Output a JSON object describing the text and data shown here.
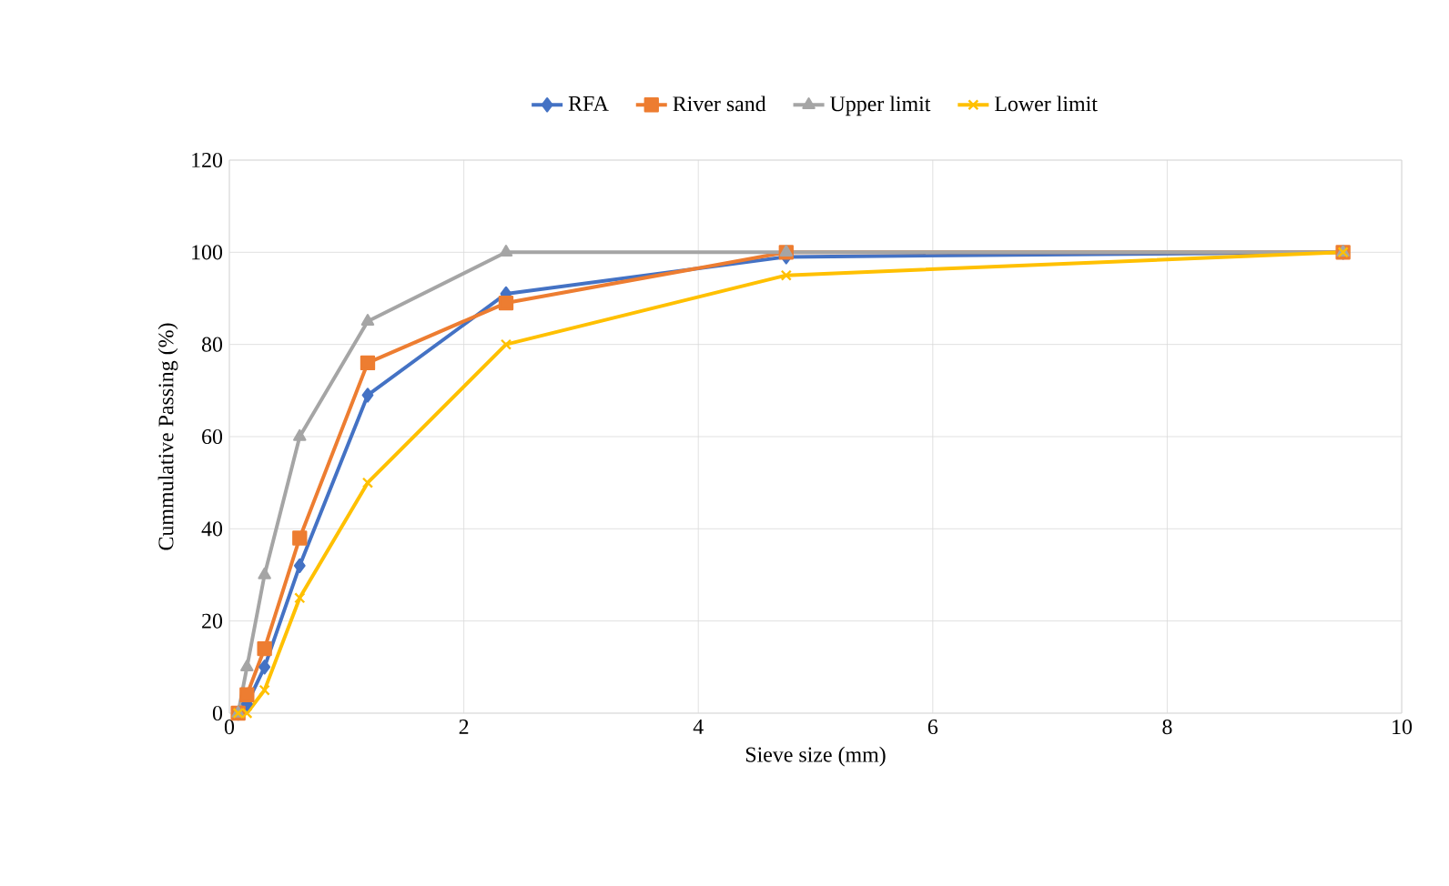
{
  "chart_data": {
    "type": "line",
    "xlabel": "Sieve size (mm)",
    "ylabel": "Cummulative Passing (%)",
    "xlim": [
      0,
      10
    ],
    "xticks": [
      0,
      2,
      4,
      6,
      8,
      10
    ],
    "ylim": [
      0,
      120
    ],
    "yticks": [
      0,
      20,
      40,
      60,
      80,
      100,
      120
    ],
    "grid": true,
    "legend": "top",
    "x": [
      0.075,
      0.15,
      0.3,
      0.6,
      1.18,
      2.36,
      4.75,
      9.5
    ],
    "series": [
      {
        "name": "RFA",
        "color": "#4472c4",
        "marker": "diamond",
        "values": [
          0,
          2,
          10,
          32,
          69,
          91,
          99,
          100
        ]
      },
      {
        "name": "River sand",
        "color": "#ed7d31",
        "marker": "square",
        "values": [
          0,
          4,
          14,
          38,
          76,
          89,
          100,
          100
        ]
      },
      {
        "name": "Upper limit",
        "color": "#a5a5a5",
        "marker": "triangle",
        "values": [
          0,
          10,
          30,
          60,
          85,
          100,
          100,
          100
        ]
      },
      {
        "name": "Lower limit",
        "color": "#ffc000",
        "marker": "cross",
        "values": [
          0,
          0,
          5,
          25,
          50,
          80,
          95,
          100
        ]
      }
    ]
  }
}
